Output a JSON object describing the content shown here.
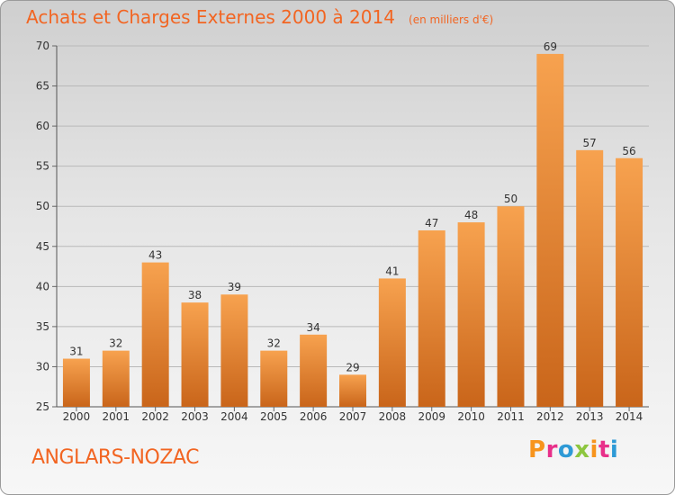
{
  "header": {
    "title": "Achats et Charges Externes 2000 à 2014",
    "subtitle": "(en milliers d'€)"
  },
  "footer": {
    "commune": "ANGLARS-NOZAC",
    "brand": "Proxiti",
    "brand_colors": [
      "#f7941d",
      "#e8308a",
      "#2e9ad6",
      "#8dc63f",
      "#f7941d",
      "#e8308a",
      "#2e9ad6"
    ]
  },
  "colors": {
    "accent": "#f26522",
    "bar_top": "#f7a24f",
    "bar_bottom": "#c9651a",
    "grid": "#b8b8b8",
    "text": "#333333"
  },
  "chart_data": {
    "type": "bar",
    "categories": [
      "2000",
      "2001",
      "2002",
      "2003",
      "2004",
      "2005",
      "2006",
      "2007",
      "2008",
      "2009",
      "2010",
      "2011",
      "2012",
      "2013",
      "2014"
    ],
    "values": [
      31,
      32,
      43,
      38,
      39,
      32,
      34,
      29,
      41,
      47,
      48,
      50,
      69,
      57,
      56
    ],
    "data_labels": [
      "31",
      "32",
      "43",
      "38",
      "39",
      "32",
      "34",
      "29",
      "41",
      "47",
      "48",
      "50",
      "69",
      "57",
      "56"
    ],
    "title": "Achats et Charges Externes 2000 à 2014",
    "subtitle": "(en milliers d'€)",
    "ylim": [
      25,
      70
    ],
    "yticks": [
      25,
      30,
      35,
      40,
      45,
      50,
      55,
      60,
      65,
      70
    ],
    "ytick_labels": [
      "25",
      "30",
      "35",
      "40",
      "45",
      "50",
      "55",
      "60",
      "65",
      "70"
    ],
    "grid": true
  }
}
